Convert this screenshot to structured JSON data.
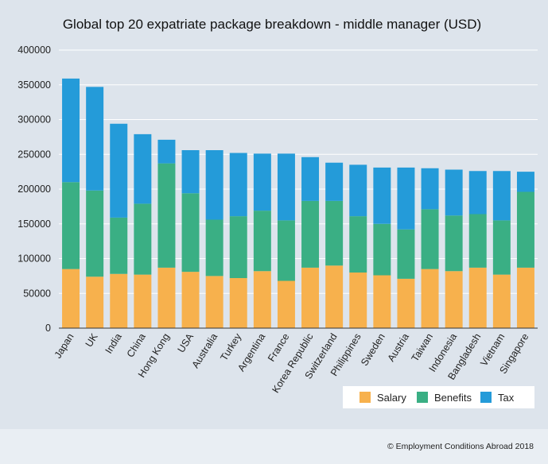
{
  "chart_data": {
    "type": "bar",
    "stacked": true,
    "title": "Global top 20 expatriate package breakdown - middle manager (USD)",
    "xlabel": "",
    "ylabel": "",
    "ylim": [
      0,
      400000
    ],
    "yticks": [
      0,
      50000,
      100000,
      150000,
      200000,
      250000,
      300000,
      350000,
      400000
    ],
    "grid": true,
    "legend_position": "bottom-right",
    "categories": [
      "Japan",
      "UK",
      "India",
      "China",
      "Hong Kong",
      "USA",
      "Australia",
      "Turkey",
      "Argentina",
      "France",
      "Korea Republic",
      "Switzerland",
      "Philippines",
      "Sweden",
      "Austria",
      "Taiwan",
      "Indonesia",
      "Bangladesh",
      "Vietnam",
      "Singapore"
    ],
    "series": [
      {
        "name": "Salary",
        "color": "#f7b14d",
        "values": [
          85000,
          74000,
          78000,
          77000,
          87000,
          81000,
          75000,
          72000,
          82000,
          68000,
          87000,
          90000,
          80000,
          76000,
          71000,
          85000,
          82000,
          87000,
          77000,
          87000
        ]
      },
      {
        "name": "Benefits",
        "color": "#3aaf84",
        "values": [
          125000,
          124000,
          81000,
          102000,
          150000,
          113000,
          81000,
          89000,
          87000,
          87000,
          96000,
          93000,
          81000,
          74000,
          71000,
          86000,
          80000,
          77000,
          78000,
          109000
        ]
      },
      {
        "name": "Tax",
        "color": "#249bd9",
        "values": [
          149000,
          149000,
          135000,
          100000,
          34000,
          62000,
          100000,
          91000,
          82000,
          96000,
          63000,
          55000,
          74000,
          81000,
          89000,
          59000,
          66000,
          62000,
          71000,
          29000
        ]
      }
    ]
  },
  "footer": {
    "copyright": "© Employment Conditions Abroad 2018"
  }
}
